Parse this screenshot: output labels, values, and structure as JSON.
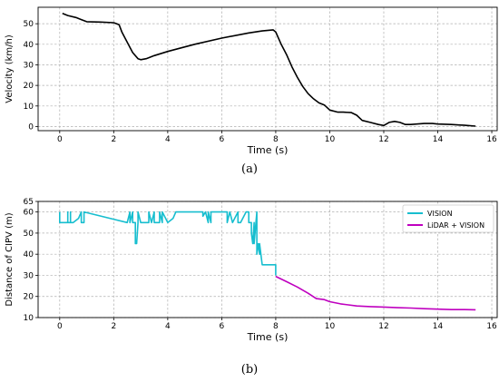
{
  "chart_data": [
    {
      "type": "line",
      "caption": "(a)",
      "xlabel": "Time (s)",
      "ylabel": "Velocity (km/h)",
      "xlim": [
        -0.8,
        16.2
      ],
      "ylim": [
        -2,
        58
      ],
      "xticks": [
        0,
        2,
        4,
        6,
        8,
        10,
        12,
        14,
        16
      ],
      "yticks": [
        0,
        10,
        20,
        30,
        40,
        50
      ],
      "grid": true,
      "series": [
        {
          "color": "#000000",
          "x": [
            0.1,
            0.3,
            0.6,
            0.8,
            1.0,
            1.5,
            2.0,
            2.2,
            2.3,
            2.5,
            2.7,
            2.9,
            3.0,
            3.2,
            3.5,
            4.0,
            5.0,
            6.0,
            7.0,
            7.5,
            7.9,
            8.0,
            8.2,
            8.4,
            8.6,
            8.8,
            9.0,
            9.2,
            9.4,
            9.6,
            9.8,
            10.0,
            10.3,
            10.5,
            10.8,
            11.0,
            11.2,
            11.5,
            11.8,
            12.0,
            12.2,
            12.4,
            12.6,
            12.8,
            13.0,
            13.5,
            13.8,
            14.0,
            14.5,
            15.0,
            15.4
          ],
          "y": [
            55,
            54,
            53,
            52,
            51,
            50.8,
            50.5,
            49.5,
            46,
            41,
            36,
            33,
            32.5,
            33,
            34.5,
            36.5,
            40,
            43,
            45.5,
            46.5,
            47,
            46,
            40,
            35,
            29,
            24,
            19.5,
            16,
            13.5,
            11.5,
            10.5,
            8,
            7,
            7,
            6.8,
            5.5,
            3,
            2,
            1,
            0.5,
            2,
            2.5,
            2,
            1,
            1,
            1.5,
            1.5,
            1.2,
            1,
            0.6,
            0.2
          ]
        }
      ]
    },
    {
      "type": "line",
      "caption": "(b)",
      "xlabel": "Time (s)",
      "ylabel": "Distance of CIPV (m)",
      "xlim": [
        -0.8,
        16.2
      ],
      "ylim": [
        10,
        65
      ],
      "xticks": [
        0,
        2,
        4,
        6,
        8,
        10,
        12,
        14,
        16
      ],
      "yticks": [
        10,
        20,
        30,
        40,
        50,
        60
      ],
      "extra_ytick_labels": [
        "65"
      ],
      "grid": true,
      "legend": "top-right",
      "series": [
        {
          "name": "VISION",
          "color": "#17becf",
          "x": [
            0,
            0,
            0,
            0.3,
            0.3,
            0.3,
            0.4,
            0.4,
            0.4,
            0.5,
            0.5,
            0.7,
            0.8,
            0.8,
            0.8,
            0.9,
            0.9,
            2.5,
            2.6,
            2.6,
            2.7,
            2.7,
            2.8,
            2.8,
            2.85,
            2.9,
            2.9,
            3.0,
            3.0,
            3.3,
            3.3,
            3.4,
            3.5,
            3.5,
            3.7,
            3.7,
            3.8,
            3.8,
            4.0,
            4.0,
            4.2,
            4.3,
            4.4,
            5.3,
            5.3,
            5.4,
            5.5,
            5.5,
            5.6,
            5.6,
            5.8,
            6.2,
            6.2,
            6.3,
            6.4,
            6.4,
            6.6,
            6.6,
            6.7,
            6.9,
            6.9,
            7.0,
            7.0,
            7.1,
            7.1,
            7.15,
            7.2,
            7.2,
            7.3,
            7.3,
            7.3,
            7.35,
            7.4,
            7.4,
            7.5,
            7.5,
            7.5,
            8.0,
            8.0
          ],
          "y": [
            60,
            55,
            55,
            55,
            60,
            55,
            55,
            60,
            55,
            55,
            55,
            57,
            60,
            55,
            55,
            55,
            60,
            55,
            60,
            55,
            60,
            55,
            55,
            45,
            45,
            55,
            60,
            55,
            55,
            55,
            60,
            55,
            60,
            55,
            55,
            60,
            55,
            60,
            55,
            55,
            57,
            60,
            60,
            60,
            58,
            60,
            55,
            60,
            55,
            60,
            60,
            60,
            55,
            60,
            55,
            55,
            60,
            55,
            55,
            60,
            60,
            60,
            55,
            55,
            50,
            45,
            55,
            45,
            60,
            50,
            40,
            45,
            40,
            45,
            35,
            35,
            35,
            35,
            30
          ]
        },
        {
          "name": "LiDAR + VISION",
          "color": "#bf00bf",
          "x": [
            8.0,
            8.4,
            8.8,
            9.2,
            9.5,
            9.8,
            10.0,
            10.4,
            11.0,
            11.5,
            12.0,
            12.5,
            13.0,
            13.5,
            14.0,
            14.5,
            15.0,
            15.4
          ],
          "y": [
            29.5,
            27,
            24.5,
            21.5,
            19,
            18.5,
            17.5,
            16.5,
            15.5,
            15.2,
            15,
            14.7,
            14.5,
            14.2,
            14,
            13.8,
            13.8,
            13.7
          ]
        }
      ]
    }
  ]
}
